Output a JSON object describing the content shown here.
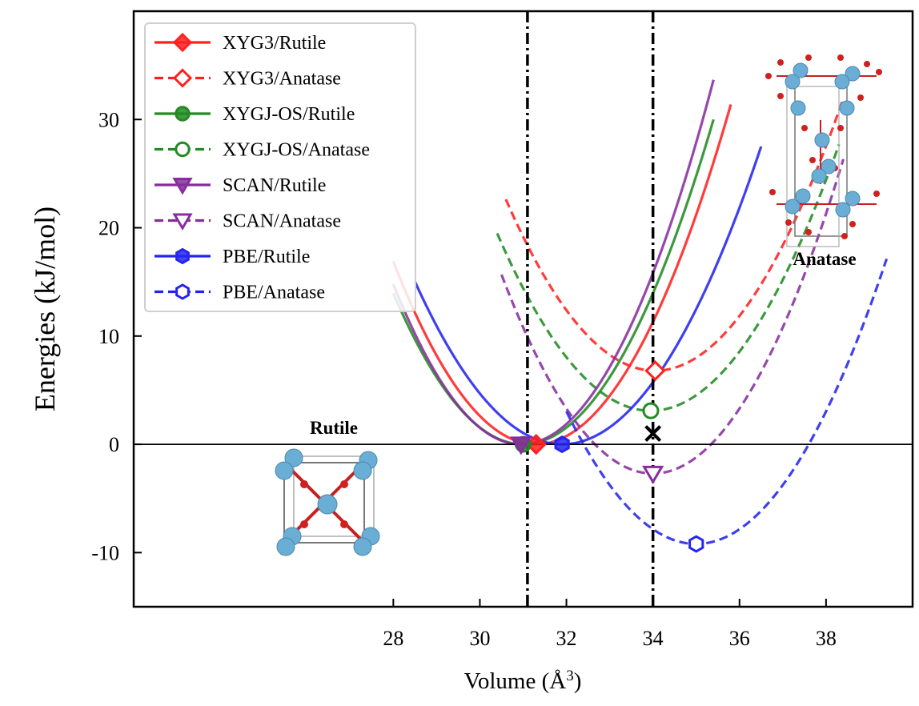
{
  "chart_data": {
    "type": "line",
    "title": "",
    "xlabel": "Volume (Å",
    "xlabel_sup": "3",
    "xlabel_close": ")",
    "ylabel": "Energies (kJ/mol)",
    "xlim": [
      22.0,
      40.0
    ],
    "ylim": [
      -15.0,
      40.0
    ],
    "x_ticks": [
      28,
      30,
      32,
      34,
      36,
      38
    ],
    "x_tick_labels": [
      "28",
      "30",
      "32",
      "34",
      "36",
      "38"
    ],
    "y_ticks": [
      -10,
      0,
      10,
      20,
      30
    ],
    "y_tick_labels": [
      "-10",
      "0",
      "10",
      "20",
      "30"
    ],
    "grid": false,
    "legend_position": "top-left",
    "reference_lines": [
      {
        "axis": "x",
        "value": 31.1,
        "style": "dashdot"
      },
      {
        "axis": "x",
        "value": 34.0,
        "style": "dashdot"
      },
      {
        "axis": "y",
        "value": 0,
        "style": "solid"
      }
    ],
    "series": [
      {
        "name": "XYG3/Rutile",
        "color": "#ff2020",
        "dashed": false,
        "marker": "diamond",
        "filled": true,
        "v0": 31.3,
        "e0": 0.0,
        "k": 1.55,
        "x_range": [
          28.0,
          35.8
        ]
      },
      {
        "name": "XYG3/Anatase",
        "color": "#ff2020",
        "dashed": true,
        "marker": "diamond",
        "filled": false,
        "v0": 34.05,
        "e0": 6.8,
        "k": 1.33,
        "x_range": [
          30.6,
          38.4
        ]
      },
      {
        "name": "XYGJ-OS/Rutile",
        "color": "#228b22",
        "dashed": false,
        "marker": "circle",
        "filled": true,
        "v0": 31.0,
        "e0": 0.0,
        "k": 1.55,
        "x_range": [
          28.0,
          35.4
        ]
      },
      {
        "name": "XYGJ-OS/Anatase",
        "color": "#228b22",
        "dashed": true,
        "marker": "circle",
        "filled": false,
        "v0": 33.95,
        "e0": 3.1,
        "k": 1.3,
        "x_range": [
          30.4,
          38.3
        ]
      },
      {
        "name": "SCAN/Rutile",
        "color": "#882d9e",
        "dashed": false,
        "marker": "triangle-down",
        "filled": true,
        "v0": 30.95,
        "e0": 0.0,
        "k": 1.7,
        "x_range": [
          28.0,
          35.4
        ]
      },
      {
        "name": "SCAN/Anatase",
        "color": "#882d9e",
        "dashed": true,
        "marker": "triangle-down",
        "filled": false,
        "v0": 34.0,
        "e0": -2.7,
        "k": 1.5,
        "x_range": [
          30.5,
          38.4
        ]
      },
      {
        "name": "PBE/Rutile",
        "color": "#2424f0",
        "dashed": false,
        "marker": "hexagon",
        "filled": true,
        "v0": 31.9,
        "e0": 0.0,
        "k": 1.3,
        "x_range": [
          28.5,
          36.5
        ]
      },
      {
        "name": "PBE/Anatase",
        "color": "#2424f0",
        "dashed": true,
        "marker": "hexagon",
        "filled": false,
        "v0": 35.0,
        "e0": -9.2,
        "k": 1.36,
        "x_range": [
          32.0,
          39.4
        ]
      }
    ],
    "extra_marker": {
      "x": 34.0,
      "y": 1.0,
      "marker": "x",
      "color": "#000000"
    },
    "annotations": [
      {
        "text": "Rutile",
        "x": 28.6,
        "y": 1.2
      },
      {
        "text": "Anatase",
        "x": 39.9,
        "y": 16.6
      }
    ]
  }
}
